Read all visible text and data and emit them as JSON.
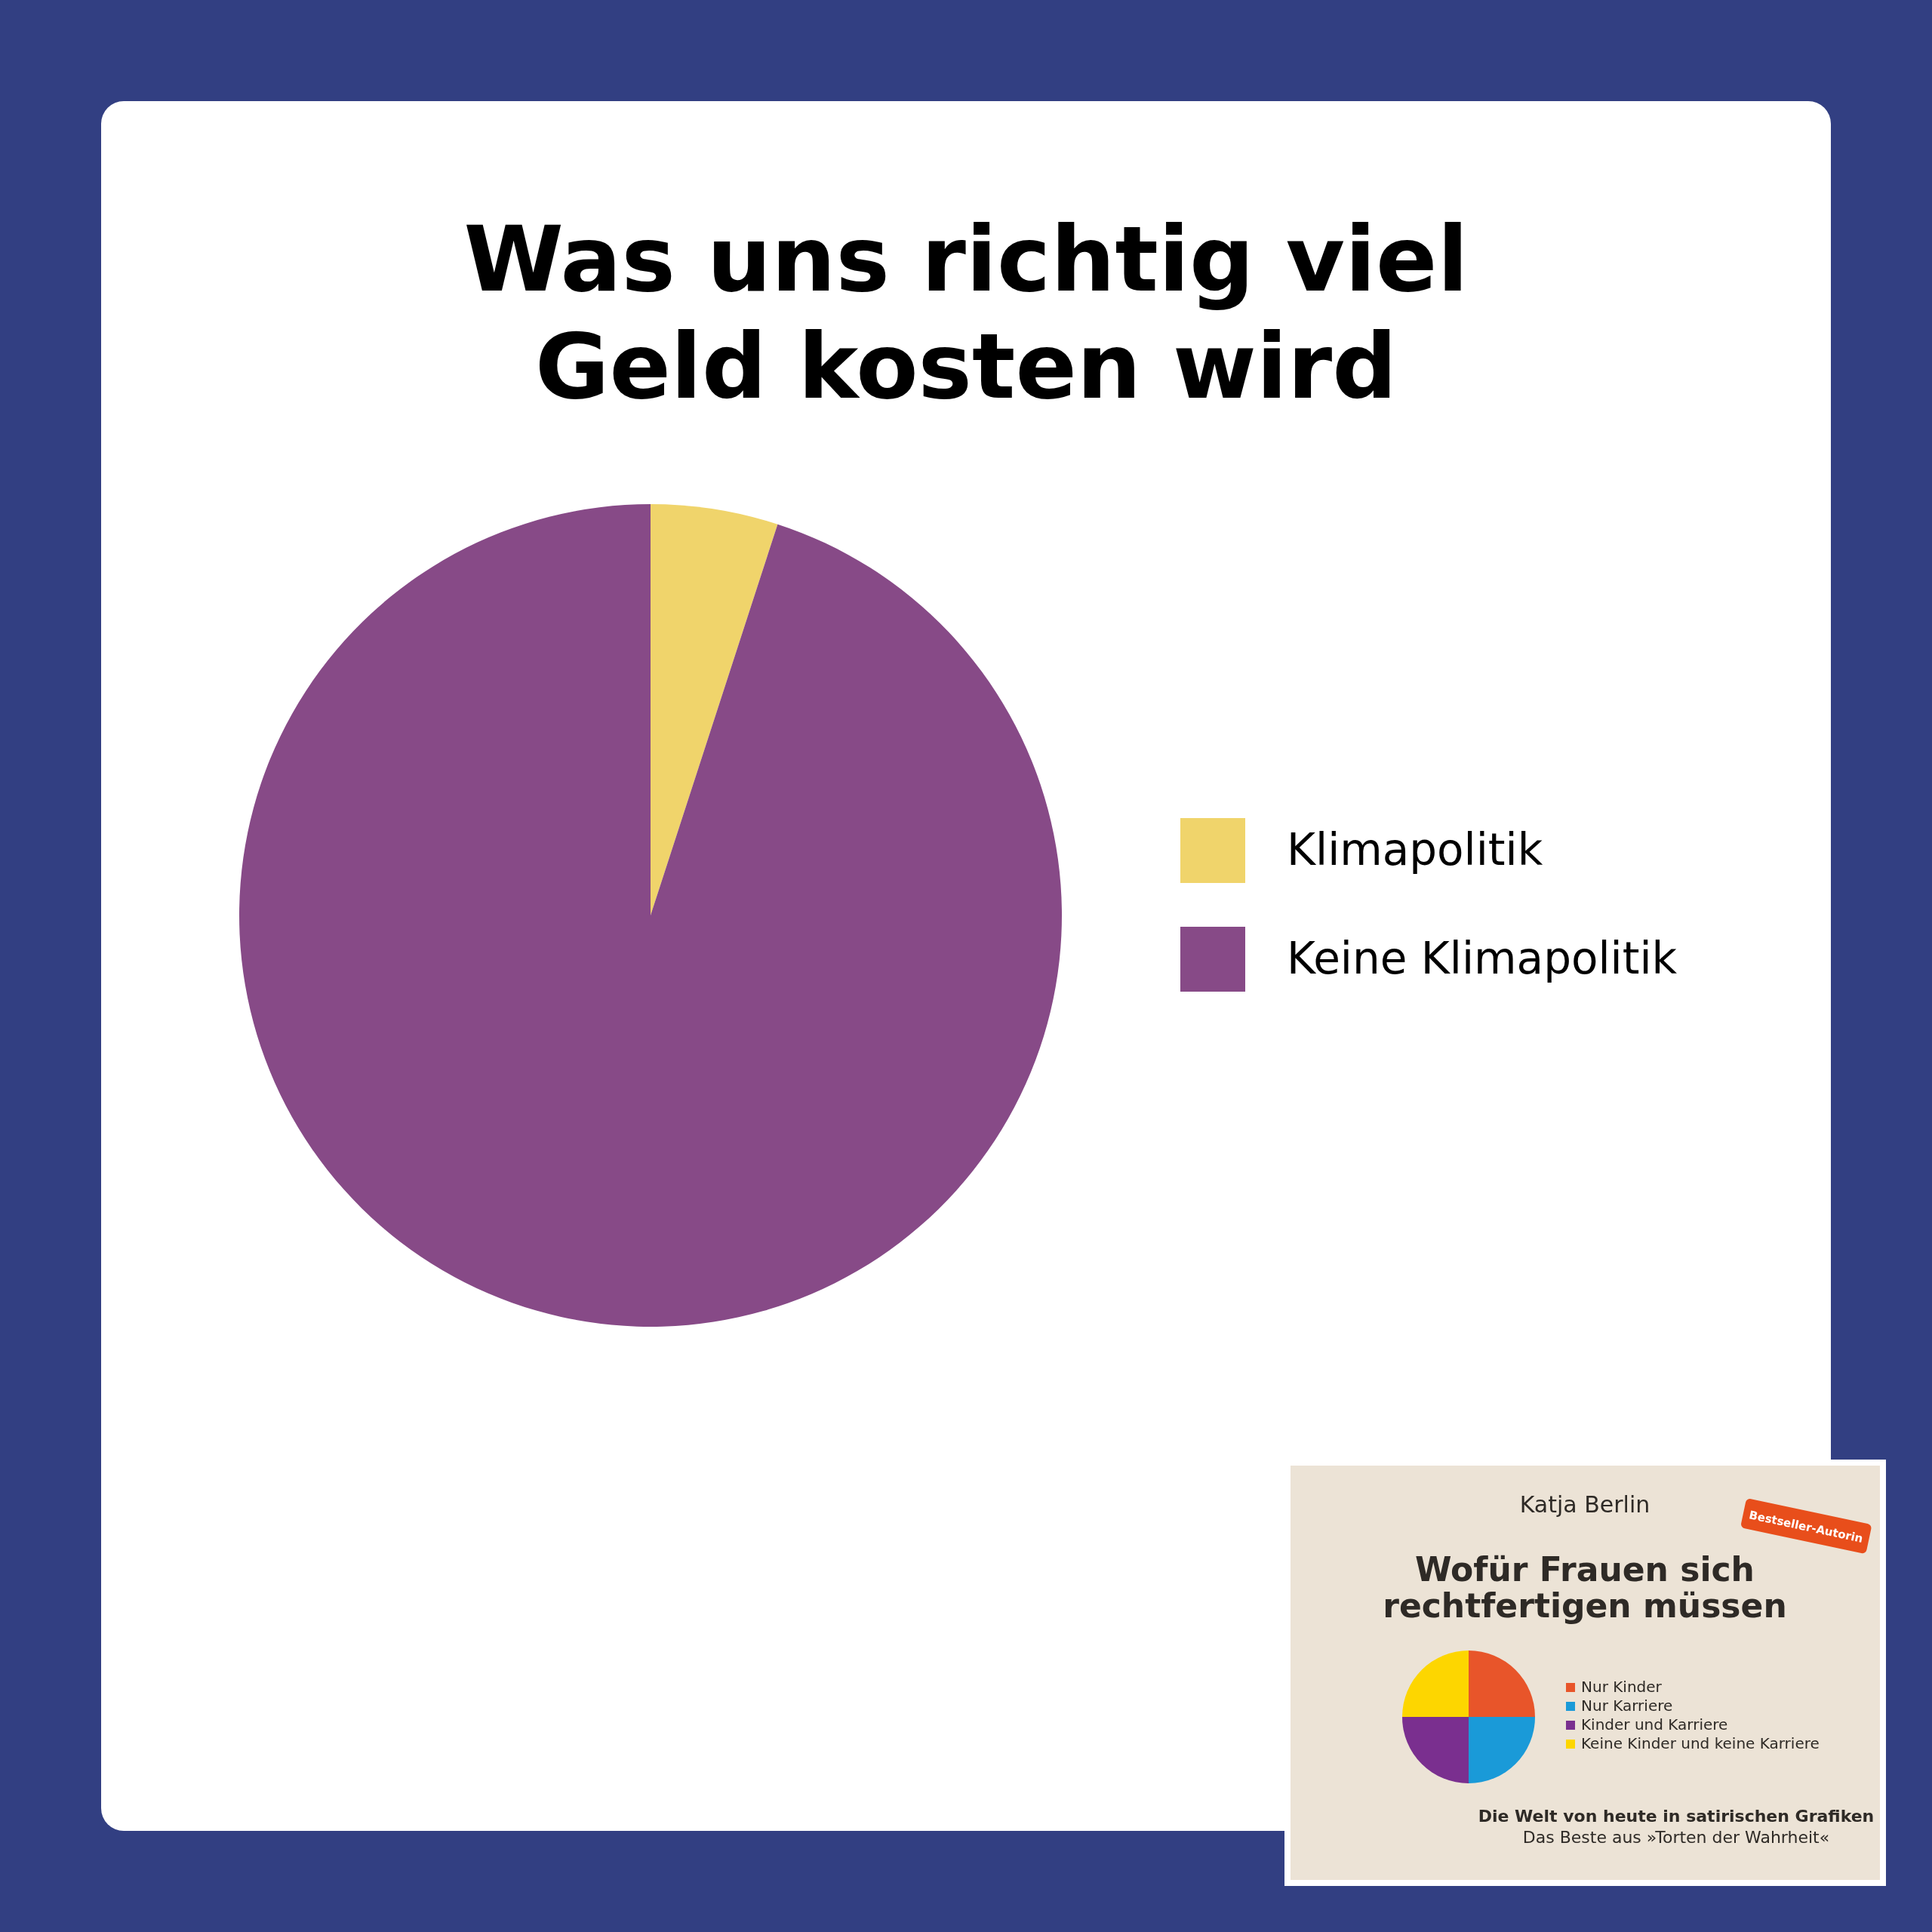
{
  "chart_data": {
    "type": "pie",
    "title": "Was uns richtig viel Geld kosten wird",
    "categories": [
      "Klimapolitik",
      "Keine Klimapolitik"
    ],
    "values": [
      5,
      95
    ],
    "colors": [
      "#f0d46b",
      "#874a87"
    ],
    "legend": "right",
    "annotations": [
      "Katja Berlin",
      "Wofür Frauen sich rechtfertigen müssen",
      "Bestseller-Autorin",
      "Nur Kinder",
      "Nur Karriere",
      "Kinder und Karriere",
      "Keine Kinder und keine Karriere",
      "Die Welt von heute in satirischen Grafiken",
      "Das Beste aus »Torten der Wahrheit«"
    ]
  }
}
